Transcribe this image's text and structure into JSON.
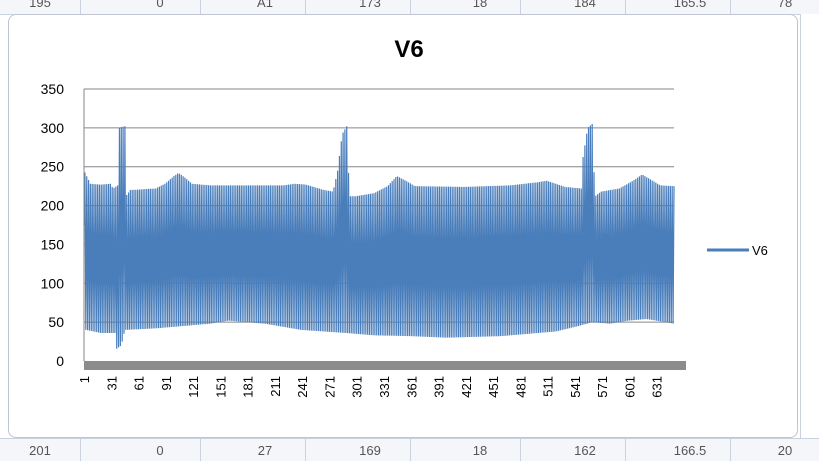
{
  "sheet": {
    "top_cells": [
      "195",
      "0",
      "A1",
      "173",
      "18",
      "184",
      "165.5",
      "78"
    ],
    "bottom_cells": [
      "201",
      "0",
      "27",
      "169",
      "18",
      "162",
      "166.5",
      "20"
    ]
  },
  "chart_data": {
    "type": "line",
    "title": "V6",
    "xlabel": "",
    "ylabel": "",
    "ylim": [
      0,
      350
    ],
    "yticks": [
      0,
      50,
      100,
      150,
      200,
      250,
      300,
      350
    ],
    "xticks": [
      "1",
      "31",
      "61",
      "91",
      "121",
      "151",
      "181",
      "211",
      "241",
      "271",
      "301",
      "331",
      "361",
      "391",
      "421",
      "451",
      "481",
      "511",
      "541",
      "571",
      "601",
      "631"
    ],
    "x_range": [
      1,
      650
    ],
    "grid": "horizontal",
    "legend_position": "right",
    "series": [
      {
        "name": "V6",
        "color": "#4a7ebb",
        "style": "high-frequency oscillation between a lower and upper envelope",
        "upper_envelope": [
          [
            1,
            245
          ],
          [
            8,
            228
          ],
          [
            20,
            227
          ],
          [
            30,
            228
          ],
          [
            33,
            222
          ],
          [
            38,
            226
          ],
          [
            39,
            300
          ],
          [
            46,
            302
          ],
          [
            47,
            212
          ],
          [
            52,
            220
          ],
          [
            80,
            222
          ],
          [
            90,
            228
          ],
          [
            100,
            238
          ],
          [
            105,
            242
          ],
          [
            112,
            236
          ],
          [
            120,
            228
          ],
          [
            140,
            226
          ],
          [
            200,
            226
          ],
          [
            220,
            226
          ],
          [
            232,
            228
          ],
          [
            245,
            227
          ],
          [
            265,
            220
          ],
          [
            275,
            218
          ],
          [
            280,
            245
          ],
          [
            285,
            292
          ],
          [
            290,
            302
          ],
          [
            293,
            212
          ],
          [
            300,
            212
          ],
          [
            320,
            216
          ],
          [
            335,
            225
          ],
          [
            345,
            238
          ],
          [
            355,
            232
          ],
          [
            365,
            225
          ],
          [
            420,
            224
          ],
          [
            470,
            226
          ],
          [
            500,
            230
          ],
          [
            510,
            232
          ],
          [
            530,
            224
          ],
          [
            548,
            222
          ],
          [
            549,
            255
          ],
          [
            555,
            300
          ],
          [
            560,
            305
          ],
          [
            563,
            212
          ],
          [
            570,
            218
          ],
          [
            590,
            222
          ],
          [
            605,
            232
          ],
          [
            615,
            240
          ],
          [
            625,
            233
          ],
          [
            635,
            226
          ],
          [
            650,
            225
          ]
        ],
        "lower_envelope": [
          [
            1,
            175
          ],
          [
            3,
            40
          ],
          [
            20,
            36
          ],
          [
            35,
            36
          ],
          [
            36,
            15
          ],
          [
            42,
            20
          ],
          [
            46,
            40
          ],
          [
            80,
            42
          ],
          [
            140,
            48
          ],
          [
            160,
            52
          ],
          [
            200,
            48
          ],
          [
            240,
            40
          ],
          [
            290,
            36
          ],
          [
            320,
            33
          ],
          [
            360,
            32
          ],
          [
            400,
            30
          ],
          [
            460,
            32
          ],
          [
            520,
            38
          ],
          [
            545,
            45
          ],
          [
            560,
            50
          ],
          [
            580,
            48
          ],
          [
            600,
            52
          ],
          [
            620,
            54
          ],
          [
            650,
            48
          ]
        ]
      }
    ]
  }
}
